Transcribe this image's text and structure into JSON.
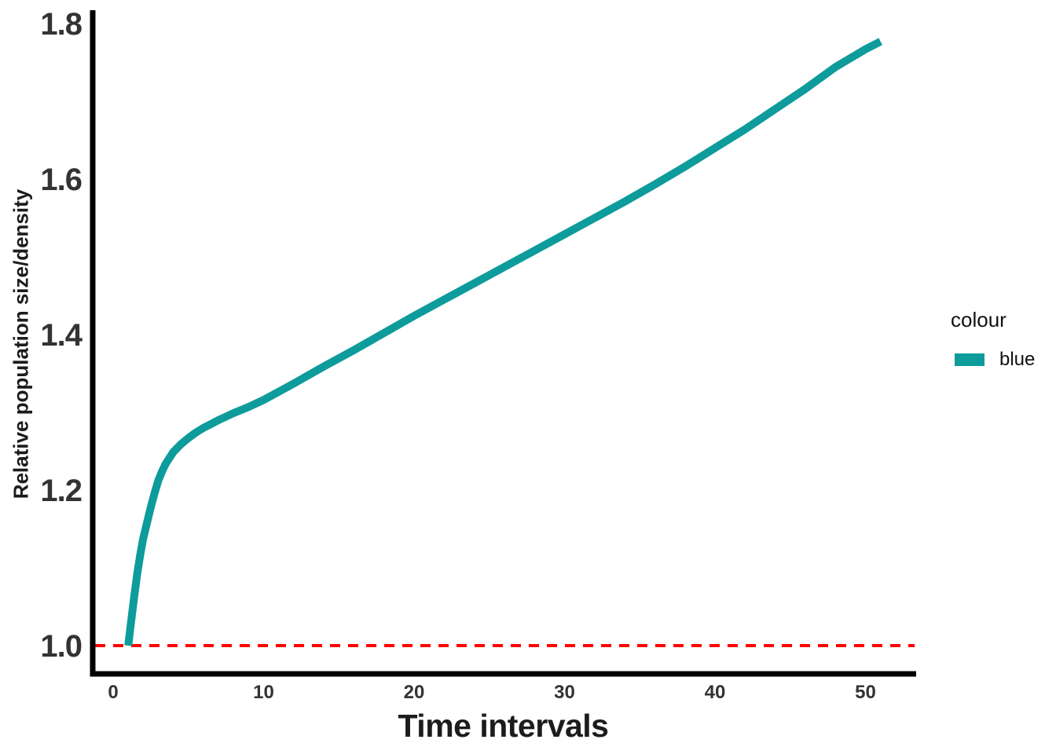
{
  "figure": {
    "background": "#ffffff",
    "axis_color": "#000000",
    "tick_color": "#333333",
    "title_color": "#1c1c1c"
  },
  "chart_data": {
    "type": "line",
    "title": "",
    "xlabel": "Time intervals",
    "ylabel": "Relative population size/density",
    "xlim": [
      -1.5,
      53.5
    ],
    "ylim": [
      0.963,
      1.816
    ],
    "grid": false,
    "x_ticks": [
      0,
      10,
      20,
      30,
      40,
      50
    ],
    "x_tick_labels": [
      "0",
      "10",
      "20",
      "30",
      "40",
      "50"
    ],
    "y_ticks": [
      1.0,
      1.2,
      1.4,
      1.6,
      1.8
    ],
    "y_tick_labels": [
      "1.0",
      "1.2",
      "1.4",
      "1.6",
      "1.8"
    ],
    "reference_line": {
      "y": 1.0,
      "color": "#FF0000",
      "style": "dashed",
      "width": 4
    },
    "legend": {
      "title": "colour",
      "position": "right",
      "entries": [
        {
          "label": "blue",
          "color": "#0D9B9B",
          "shape": "line"
        }
      ]
    },
    "series": [
      {
        "name": "blue",
        "color": "#0D9B9B",
        "width": 10,
        "points": [
          [
            1,
            1.0
          ],
          [
            1.2,
            1.032
          ],
          [
            1.4,
            1.063
          ],
          [
            1.6,
            1.092
          ],
          [
            1.8,
            1.117
          ],
          [
            2,
            1.138
          ],
          [
            2.25,
            1.158
          ],
          [
            2.5,
            1.178
          ],
          [
            2.75,
            1.196
          ],
          [
            3,
            1.212
          ],
          [
            3.25,
            1.224
          ],
          [
            3.5,
            1.234
          ],
          [
            4,
            1.249
          ],
          [
            4.5,
            1.259
          ],
          [
            5,
            1.267
          ],
          [
            5.5,
            1.274
          ],
          [
            6,
            1.28
          ],
          [
            6.5,
            1.285
          ],
          [
            7,
            1.29
          ],
          [
            8,
            1.299
          ],
          [
            9,
            1.307
          ],
          [
            10,
            1.316
          ],
          [
            12,
            1.337
          ],
          [
            14,
            1.359
          ],
          [
            16,
            1.38
          ],
          [
            18,
            1.402
          ],
          [
            20,
            1.424
          ],
          [
            22,
            1.445
          ],
          [
            24,
            1.466
          ],
          [
            26,
            1.487
          ],
          [
            28,
            1.508
          ],
          [
            30,
            1.529
          ],
          [
            32,
            1.55
          ],
          [
            34,
            1.571
          ],
          [
            36,
            1.593
          ],
          [
            38,
            1.616
          ],
          [
            40,
            1.64
          ],
          [
            42,
            1.664
          ],
          [
            44,
            1.69
          ],
          [
            46,
            1.716
          ],
          [
            48,
            1.744
          ],
          [
            50,
            1.767
          ],
          [
            51,
            1.777
          ]
        ]
      }
    ]
  }
}
